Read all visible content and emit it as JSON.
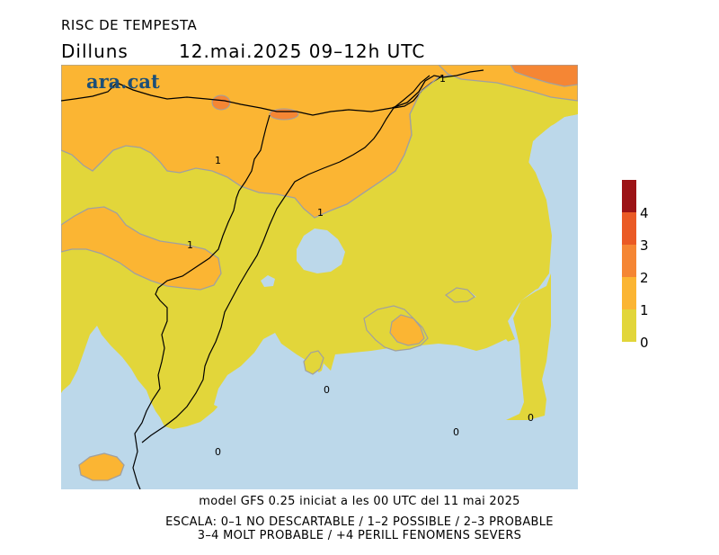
{
  "header": {
    "title": "RISC DE TEMPESTA",
    "day": "Dilluns",
    "datetime": "12.mai.2025 09–12h UTC"
  },
  "logo": {
    "text": "ara.cat"
  },
  "map": {
    "colors": {
      "sea": "#bcd8ea",
      "level_0_1": "#e2d63a",
      "level_1_2": "#fbb533",
      "level_2_3": "#f58634",
      "coast": "#a0a0a0",
      "border": "#000000"
    },
    "contour_labels": [
      {
        "text": "1",
        "name": "contour-label-1-north"
      },
      {
        "text": "1",
        "name": "contour-label-1-pyrenees"
      },
      {
        "text": "1",
        "name": "contour-label-1-coast"
      },
      {
        "text": "1",
        "name": "contour-label-1-west"
      },
      {
        "text": "0",
        "name": "contour-label-0-mallorca"
      },
      {
        "text": "0",
        "name": "contour-label-0-southwest"
      },
      {
        "text": "0",
        "name": "contour-label-0-south"
      },
      {
        "text": "0",
        "name": "contour-label-0-southeast"
      }
    ]
  },
  "legend": {
    "colors": [
      "#e2d63a",
      "#fbb533",
      "#f58634",
      "#ea5a25",
      "#9c1316"
    ],
    "labels": [
      "0",
      "1",
      "2",
      "3",
      "4"
    ]
  },
  "footer": {
    "model": "model GFS 0.25 iniciat a les 00 UTC del 11 mai 2025",
    "scale_line1": "ESCALA: 0–1 NO DESCARTABLE / 1–2 POSSIBLE / 2–3 PROBABLE",
    "scale_line2": "3–4 MOLT PROBABLE / +4 PERILL FENOMENS SEVERS"
  }
}
